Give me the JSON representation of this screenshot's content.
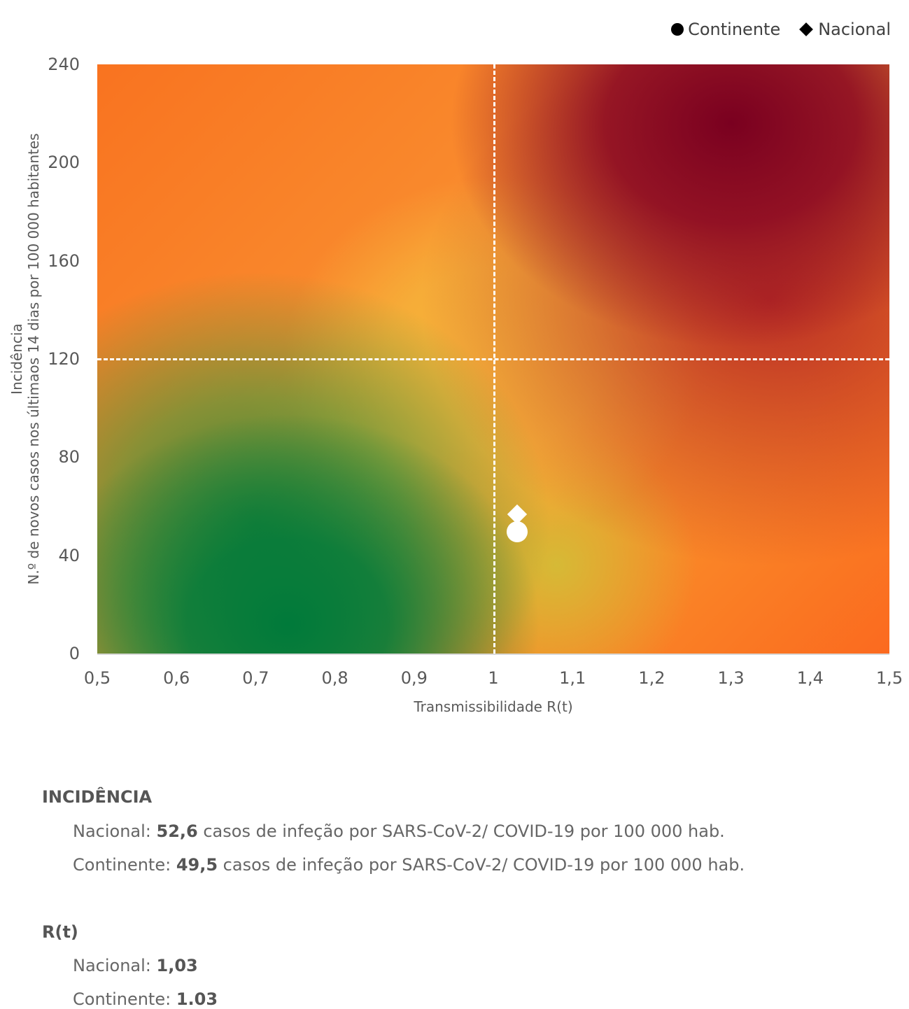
{
  "chart_data": {
    "type": "scatter",
    "xlabel": "Transmissibilidade R(t)",
    "ylabel": [
      "Incidência",
      "N.º de novos casos nos últimaos 14 dias por 100 000 habitantes"
    ],
    "xlim": [
      0.5,
      1.5
    ],
    "ylim": [
      0,
      240
    ],
    "x_ticks": [
      "0,5",
      "0,6",
      "0,7",
      "0,8",
      "0,9",
      "1",
      "1,1",
      "1,2",
      "1,3",
      "1,4",
      "1,5"
    ],
    "y_ticks": [
      "0",
      "40",
      "80",
      "120",
      "160",
      "200",
      "240"
    ],
    "thresholds": {
      "x": 1,
      "y": 120
    },
    "legend": {
      "position": "top-right",
      "entries": [
        "Continente",
        "Nacional"
      ]
    },
    "series": [
      {
        "name": "Continente",
        "marker": "circle",
        "x": 1.03,
        "y": 49.5
      },
      {
        "name": "Nacional",
        "marker": "diamond",
        "x": 1.03,
        "y": 52.6
      }
    ]
  },
  "text": {
    "incid_title": "INCIDÊNCIA",
    "incid_nac_label": "Nacional: ",
    "incid_nac_value": "52,6",
    "incid_nac_rest": " casos de infeção por SARS-CoV-2/ COVID-19 por 100 000 hab.",
    "incid_cont_label": "Continente: ",
    "incid_cont_value": "49,5",
    "incid_cont_rest": " casos de infeção por SARS-CoV-2/ COVID-19 por 100 000 hab.",
    "rt_title": "R(t)",
    "rt_nac_label": "Nacional: ",
    "rt_nac_value": "1,03",
    "rt_cont_label": "Continente: ",
    "rt_cont_value": "1.03"
  }
}
